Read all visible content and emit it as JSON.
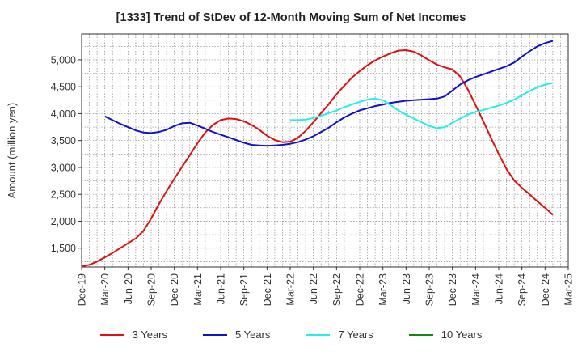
{
  "chart_data": {
    "type": "line",
    "title": "[1333]  Trend of StDev of 12-Month Moving Sum of Net Incomes",
    "xlabel": "",
    "ylabel": "Amount (million yen)",
    "ylim": [
      1150,
      5480
    ],
    "yticks": [
      1500,
      2000,
      2500,
      3000,
      3500,
      4000,
      4500,
      5000
    ],
    "ytick_labels": [
      "1,500",
      "2,000",
      "2,500",
      "3,000",
      "3,500",
      "4,000",
      "4,500",
      "5,000"
    ],
    "xticks": [
      "Dec-19",
      "Mar-20",
      "Jun-20",
      "Sep-20",
      "Dec-20",
      "Mar-21",
      "Jun-21",
      "Sep-21",
      "Dec-21",
      "Mar-22",
      "Jun-22",
      "Sep-22",
      "Dec-22",
      "Mar-23",
      "Jun-23",
      "Sep-23",
      "Dec-23",
      "Mar-24",
      "Jun-24",
      "Sep-24",
      "Dec-24",
      "Mar-25"
    ],
    "grid": true,
    "legend_position": "bottom",
    "series": [
      {
        "name": "3 Years",
        "color": "#dd1111",
        "points": [
          [
            "Dec-19",
            1160
          ],
          [
            "Jan-20",
            1190
          ],
          [
            "Feb-20",
            1250
          ],
          [
            "Mar-20",
            1330
          ],
          [
            "Apr-20",
            1410
          ],
          [
            "May-20",
            1500
          ],
          [
            "Jun-20",
            1590
          ],
          [
            "Jul-20",
            1680
          ],
          [
            "Aug-20",
            1820
          ],
          [
            "Sep-20",
            2050
          ],
          [
            "Oct-20",
            2320
          ],
          [
            "Nov-20",
            2560
          ],
          [
            "Dec-20",
            2790
          ],
          [
            "Jan-21",
            3010
          ],
          [
            "Feb-21",
            3230
          ],
          [
            "Mar-21",
            3450
          ],
          [
            "Apr-21",
            3650
          ],
          [
            "May-21",
            3790
          ],
          [
            "Jun-21",
            3880
          ],
          [
            "Jul-21",
            3910
          ],
          [
            "Aug-21",
            3900
          ],
          [
            "Sep-21",
            3860
          ],
          [
            "Oct-21",
            3790
          ],
          [
            "Nov-21",
            3700
          ],
          [
            "Dec-21",
            3590
          ],
          [
            "Jan-22",
            3510
          ],
          [
            "Feb-22",
            3470
          ],
          [
            "Mar-22",
            3480
          ],
          [
            "Apr-22",
            3550
          ],
          [
            "May-22",
            3680
          ],
          [
            "Jun-22",
            3840
          ],
          [
            "Jul-22",
            4010
          ],
          [
            "Aug-22",
            4180
          ],
          [
            "Sep-22",
            4360
          ],
          [
            "Oct-22",
            4520
          ],
          [
            "Nov-22",
            4670
          ],
          [
            "Dec-22",
            4790
          ],
          [
            "Jan-23",
            4900
          ],
          [
            "Feb-23",
            4990
          ],
          [
            "Mar-23",
            5060
          ],
          [
            "Apr-23",
            5120
          ],
          [
            "May-23",
            5170
          ],
          [
            "Jun-23",
            5180
          ],
          [
            "Jul-23",
            5150
          ],
          [
            "Aug-23",
            5080
          ],
          [
            "Sep-23",
            4990
          ],
          [
            "Oct-23",
            4910
          ],
          [
            "Nov-23",
            4860
          ],
          [
            "Dec-23",
            4820
          ],
          [
            "Jan-24",
            4690
          ],
          [
            "Feb-24",
            4450
          ],
          [
            "Mar-24",
            4160
          ],
          [
            "Apr-24",
            3860
          ],
          [
            "May-24",
            3550
          ],
          [
            "Jun-24",
            3250
          ],
          [
            "Jul-24",
            2970
          ],
          [
            "Aug-24",
            2760
          ],
          [
            "Sep-24",
            2620
          ],
          [
            "Oct-24",
            2500
          ],
          [
            "Nov-24",
            2370
          ],
          [
            "Dec-24",
            2250
          ],
          [
            "Jan-25",
            2120
          ]
        ]
      },
      {
        "name": "5 Years",
        "color": "#1111cc",
        "points": [
          [
            "Mar-20",
            3950
          ],
          [
            "Apr-20",
            3880
          ],
          [
            "May-20",
            3810
          ],
          [
            "Jun-20",
            3750
          ],
          [
            "Jul-20",
            3690
          ],
          [
            "Aug-20",
            3650
          ],
          [
            "Sep-20",
            3640
          ],
          [
            "Oct-20",
            3660
          ],
          [
            "Nov-20",
            3700
          ],
          [
            "Dec-20",
            3770
          ],
          [
            "Jan-21",
            3820
          ],
          [
            "Feb-21",
            3830
          ],
          [
            "Mar-21",
            3780
          ],
          [
            "Apr-21",
            3720
          ],
          [
            "May-21",
            3660
          ],
          [
            "Jun-21",
            3610
          ],
          [
            "Jul-21",
            3560
          ],
          [
            "Aug-21",
            3510
          ],
          [
            "Sep-21",
            3460
          ],
          [
            "Oct-21",
            3420
          ],
          [
            "Nov-21",
            3410
          ],
          [
            "Dec-21",
            3400
          ],
          [
            "Jan-22",
            3410
          ],
          [
            "Feb-22",
            3420
          ],
          [
            "Mar-22",
            3440
          ],
          [
            "Apr-22",
            3470
          ],
          [
            "May-22",
            3520
          ],
          [
            "Jun-22",
            3580
          ],
          [
            "Jul-22",
            3660
          ],
          [
            "Aug-22",
            3740
          ],
          [
            "Sep-22",
            3840
          ],
          [
            "Oct-22",
            3930
          ],
          [
            "Nov-22",
            4000
          ],
          [
            "Dec-22",
            4060
          ],
          [
            "Jan-23",
            4100
          ],
          [
            "Feb-23",
            4140
          ],
          [
            "Mar-23",
            4170
          ],
          [
            "Apr-23",
            4200
          ],
          [
            "May-23",
            4220
          ],
          [
            "Jun-23",
            4240
          ],
          [
            "Jul-23",
            4250
          ],
          [
            "Aug-23",
            4260
          ],
          [
            "Sep-23",
            4270
          ],
          [
            "Oct-23",
            4280
          ],
          [
            "Nov-23",
            4320
          ],
          [
            "Dec-23",
            4430
          ],
          [
            "Jan-24",
            4540
          ],
          [
            "Feb-24",
            4620
          ],
          [
            "Mar-24",
            4680
          ],
          [
            "Apr-24",
            4730
          ],
          [
            "May-24",
            4780
          ],
          [
            "Jun-24",
            4830
          ],
          [
            "Jul-24",
            4880
          ],
          [
            "Aug-24",
            4950
          ],
          [
            "Sep-24",
            5060
          ],
          [
            "Oct-24",
            5160
          ],
          [
            "Nov-24",
            5250
          ],
          [
            "Dec-24",
            5310
          ],
          [
            "Jan-25",
            5350
          ]
        ]
      },
      {
        "name": "7 Years",
        "color": "#22eeee",
        "points": [
          [
            "Mar-22",
            3880
          ],
          [
            "Apr-22",
            3880
          ],
          [
            "May-22",
            3890
          ],
          [
            "Jun-22",
            3920
          ],
          [
            "Jul-22",
            3960
          ],
          [
            "Aug-22",
            4010
          ],
          [
            "Sep-22",
            4060
          ],
          [
            "Oct-22",
            4120
          ],
          [
            "Nov-22",
            4170
          ],
          [
            "Dec-22",
            4220
          ],
          [
            "Jan-23",
            4260
          ],
          [
            "Feb-23",
            4280
          ],
          [
            "Mar-23",
            4250
          ],
          [
            "Apr-23",
            4160
          ],
          [
            "May-23",
            4060
          ],
          [
            "Jun-23",
            3980
          ],
          [
            "Jul-23",
            3910
          ],
          [
            "Aug-23",
            3840
          ],
          [
            "Sep-23",
            3770
          ],
          [
            "Oct-23",
            3730
          ],
          [
            "Nov-23",
            3750
          ],
          [
            "Dec-23",
            3830
          ],
          [
            "Jan-24",
            3910
          ],
          [
            "Feb-24",
            3980
          ],
          [
            "Mar-24",
            4030
          ],
          [
            "Apr-24",
            4070
          ],
          [
            "May-24",
            4110
          ],
          [
            "Jun-24",
            4150
          ],
          [
            "Jul-24",
            4200
          ],
          [
            "Aug-24",
            4260
          ],
          [
            "Sep-24",
            4340
          ],
          [
            "Oct-24",
            4420
          ],
          [
            "Nov-24",
            4490
          ],
          [
            "Dec-24",
            4540
          ],
          [
            "Jan-25",
            4570
          ]
        ]
      },
      {
        "name": "10 Years",
        "color": "#118811",
        "points": []
      }
    ]
  }
}
